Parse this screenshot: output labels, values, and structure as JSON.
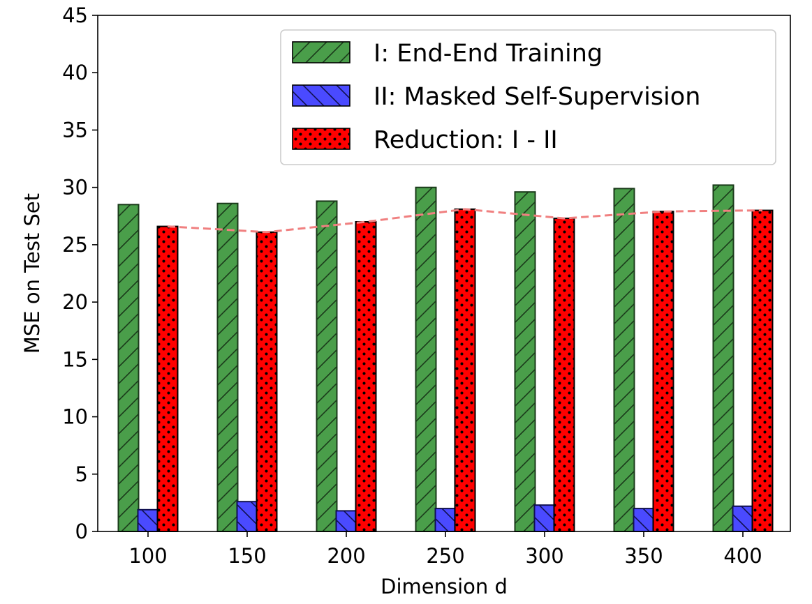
{
  "chart_data": {
    "type": "bar",
    "categories": [
      "100",
      "150",
      "200",
      "250",
      "300",
      "350",
      "400"
    ],
    "xlabel": "Dimension d",
    "ylabel": "MSE on Test Set",
    "ylim": [
      0,
      45
    ],
    "yticks": [
      0,
      5,
      10,
      15,
      20,
      25,
      30,
      35,
      40,
      45
    ],
    "grid": false,
    "legend_position": "top-right",
    "series": [
      {
        "name": "I: End-End Training",
        "values": [
          28.5,
          28.6,
          28.8,
          30.0,
          29.6,
          29.9,
          30.2
        ],
        "color": "#4a9e4a",
        "hatch": "diagonal-forward"
      },
      {
        "name": "II: Masked Self-Supervision",
        "values": [
          1.9,
          2.6,
          1.8,
          2.0,
          2.3,
          2.0,
          2.2
        ],
        "color": "#4a4aff",
        "hatch": "diagonal-back"
      },
      {
        "name": "Reduction: I - II",
        "values": [
          26.6,
          26.1,
          27.0,
          28.1,
          27.3,
          27.9,
          28.0
        ],
        "color": "#ff0000",
        "hatch": "dots"
      }
    ],
    "trend_line": {
      "values": [
        26.6,
        26.1,
        27.0,
        28.1,
        27.3,
        27.9,
        28.0
      ],
      "color": "#f08080",
      "style": "dashed"
    }
  }
}
